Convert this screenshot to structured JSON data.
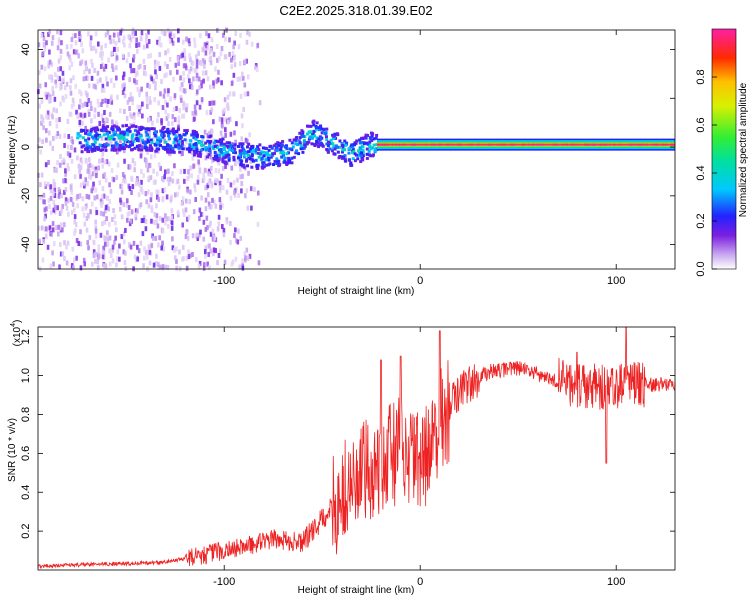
{
  "title": "C2E2.2025.318.01.39.E02",
  "chart_data": [
    {
      "type": "heatmap",
      "name": "spectrogram",
      "xlabel": "Height of straight line (km)",
      "ylabel": "Frequency (Hz)",
      "xlim": [
        -195,
        130
      ],
      "ylim": [
        -50,
        48
      ],
      "xticks": [
        {
          "v": -100,
          "t": "-100"
        },
        {
          "v": 0,
          "t": "0"
        },
        {
          "v": 100,
          "t": "100"
        }
      ],
      "yticks": [
        {
          "v": -40,
          "t": "-40"
        },
        {
          "v": -20,
          "t": "-20"
        },
        {
          "v": 0,
          "t": "0"
        },
        {
          "v": 20,
          "t": "20"
        },
        {
          "v": 40,
          "t": "40"
        }
      ],
      "colorbar": {
        "label": "Normalized spectral amplitude",
        "range": [
          0,
          1
        ],
        "ticks": [
          {
            "v": 0.0,
            "t": "0.0"
          },
          {
            "v": 0.2,
            "t": "0.2"
          },
          {
            "v": 0.4,
            "t": "0.4"
          },
          {
            "v": 0.6,
            "t": "0.6"
          },
          {
            "v": 0.8,
            "t": "0.8"
          }
        ]
      },
      "stable_tone": {
        "frequency_hz": 1,
        "x_start": -22,
        "x_end": 130,
        "amplitude": 1.0
      },
      "drift_segments": [
        {
          "x": -170,
          "f": 3
        },
        {
          "x": -150,
          "f": 4
        },
        {
          "x": -130,
          "f": 3
        },
        {
          "x": -110,
          "f": 1
        },
        {
          "x": -95,
          "f": -3
        },
        {
          "x": -80,
          "f": -4
        },
        {
          "x": -65,
          "f": -2
        },
        {
          "x": -55,
          "f": 6
        },
        {
          "x": -45,
          "f": 2
        },
        {
          "x": -35,
          "f": -3
        },
        {
          "x": -25,
          "f": 1
        }
      ]
    },
    {
      "type": "line",
      "name": "snr",
      "xlabel": "Height of straight line (km)",
      "ylabel": "SNR (10 * v/v)",
      "yscale_label": "(x10",
      "yscale_exp": "4",
      "xlim": [
        -195,
        130
      ],
      "ylim": [
        0,
        1.25
      ],
      "xticks": [
        {
          "v": -100,
          "t": "-100"
        },
        {
          "v": 0,
          "t": "0"
        },
        {
          "v": 100,
          "t": "100"
        }
      ],
      "yticks": [
        {
          "v": 0.2,
          "t": "0.2"
        },
        {
          "v": 0.4,
          "t": "0.4"
        },
        {
          "v": 0.6,
          "t": "0.6"
        },
        {
          "v": 0.8,
          "t": "0.8"
        },
        {
          "v": 1.0,
          "t": "1.0"
        },
        {
          "v": 1.2,
          "t": "1.2"
        }
      ],
      "color": "#ee2222",
      "envelope": [
        {
          "x": -195,
          "y": 0.02
        },
        {
          "x": -160,
          "y": 0.03
        },
        {
          "x": -130,
          "y": 0.04
        },
        {
          "x": -110,
          "y": 0.08
        },
        {
          "x": -90,
          "y": 0.12
        },
        {
          "x": -75,
          "y": 0.16
        },
        {
          "x": -60,
          "y": 0.14
        },
        {
          "x": -45,
          "y": 0.32
        },
        {
          "x": -30,
          "y": 0.48
        },
        {
          "x": -20,
          "y": 0.55
        },
        {
          "x": -10,
          "y": 0.62
        },
        {
          "x": 0,
          "y": 0.52
        },
        {
          "x": 10,
          "y": 0.75
        },
        {
          "x": 20,
          "y": 0.92
        },
        {
          "x": 35,
          "y": 1.02
        },
        {
          "x": 50,
          "y": 1.04
        },
        {
          "x": 65,
          "y": 0.99
        },
        {
          "x": 80,
          "y": 0.95
        },
        {
          "x": 95,
          "y": 0.94
        },
        {
          "x": 110,
          "y": 0.95
        },
        {
          "x": 130,
          "y": 0.96
        }
      ],
      "spikes": [
        {
          "x": -20,
          "y": 1.08
        },
        {
          "x": -10,
          "y": 1.1
        },
        {
          "x": 10,
          "y": 1.23
        },
        {
          "x": 80,
          "y": 1.12
        },
        {
          "x": 95,
          "y": 0.55
        },
        {
          "x": 105,
          "y": 1.25
        }
      ]
    }
  ]
}
